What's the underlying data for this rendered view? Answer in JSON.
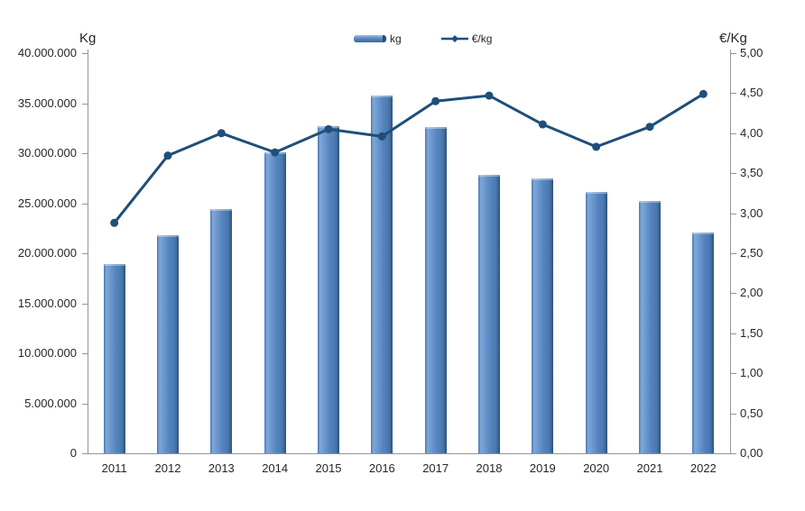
{
  "chart": {
    "colors": {
      "bar_main": "#5585C0",
      "bar_light": "#7FA7D9",
      "bar_mid": "#4A78AE",
      "bar_dark": "#2E5379",
      "line": "#1F4E79",
      "axis": "#969696",
      "text": "#262626"
    }
  },
  "chart_data": {
    "type": "bar+line combo",
    "title": "",
    "categories": [
      "2011",
      "2012",
      "2013",
      "2014",
      "2015",
      "2016",
      "2017",
      "2018",
      "2019",
      "2020",
      "2021",
      "2022"
    ],
    "series": [
      {
        "name": "kg",
        "type": "bar",
        "axis": "left",
        "values": [
          18900000,
          21800000,
          24400000,
          30100000,
          32700000,
          35800000,
          32600000,
          27800000,
          27500000,
          26100000,
          25200000,
          22100000
        ]
      },
      {
        "name": "€/kg",
        "type": "line",
        "axis": "right",
        "values": [
          2.88,
          3.72,
          4.0,
          3.76,
          4.05,
          3.96,
          4.4,
          4.47,
          4.11,
          3.83,
          4.08,
          4.49
        ]
      }
    ],
    "left_axis": {
      "title": "Kg",
      "min": 0,
      "max": 40000000,
      "step": 5000000,
      "tick_labels": [
        "0",
        "5.000.000",
        "10.000.000",
        "15.000.000",
        "20.000.000",
        "25.000.000",
        "30.000.000",
        "35.000.000",
        "40.000.000"
      ]
    },
    "right_axis": {
      "title": "€/Kg",
      "min": 0,
      "max": 5,
      "step": 0.5,
      "tick_labels": [
        "0,00",
        "0,50",
        "1,00",
        "1,50",
        "2,00",
        "2,50",
        "3,00",
        "3,50",
        "4,00",
        "4,50",
        "5,00"
      ]
    },
    "legend_position": "top-center",
    "grid": false
  }
}
